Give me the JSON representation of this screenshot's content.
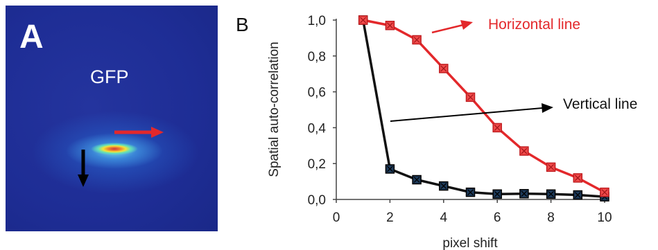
{
  "panel_a": {
    "letter": "A",
    "label": "GFP"
  },
  "panel_b": {
    "letter": "B"
  },
  "colors": {
    "horizontal": "#e3282b",
    "vertical": "#111111",
    "marker_black": "#1d3a5a",
    "image_background": "#1f2e96"
  },
  "chart_data": {
    "type": "line",
    "xlabel": "pixel shift",
    "ylabel": "Spatial auto-correlation",
    "xlim": [
      0,
      10
    ],
    "ylim": [
      0,
      1
    ],
    "x_ticks": [
      "0",
      "2",
      "4",
      "6",
      "8",
      "10"
    ],
    "y_ticks": [
      "0,0",
      "0,2",
      "0,4",
      "0,6",
      "0,8",
      "1,0"
    ],
    "grid": false,
    "series": [
      {
        "name": "Horizontal line",
        "color": "#e3282b",
        "x": [
          1,
          2,
          3,
          4,
          5,
          6,
          7,
          8,
          9,
          10
        ],
        "y": [
          1.0,
          0.97,
          0.89,
          0.73,
          0.57,
          0.4,
          0.27,
          0.18,
          0.12,
          0.04
        ]
      },
      {
        "name": "Vertical line",
        "color": "#111111",
        "x": [
          1,
          2,
          3,
          4,
          5,
          6,
          7,
          8,
          9,
          10
        ],
        "y": [
          1.0,
          0.17,
          0.11,
          0.075,
          0.04,
          0.03,
          0.032,
          0.03,
          0.025,
          0.015
        ]
      }
    ]
  }
}
